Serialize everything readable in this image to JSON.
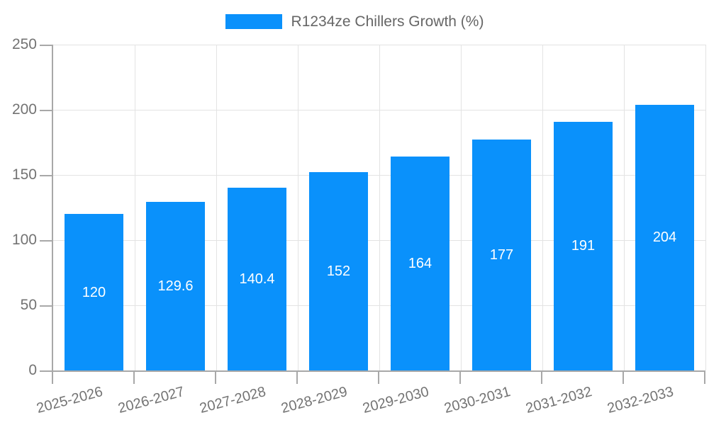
{
  "legend": {
    "label": "R1234ze Chillers Growth (%)"
  },
  "chart_data": {
    "type": "bar",
    "title": "R1234ze Chillers Growth (%)",
    "categories": [
      "2025-2026",
      "2026-2027",
      "2027-2028",
      "2028-2029",
      "2029-2030",
      "2030-2031",
      "2031-2032",
      "2032-2033"
    ],
    "values": [
      120,
      129.6,
      140.4,
      152,
      164,
      177,
      191,
      204
    ],
    "value_labels": [
      "120",
      "129.6",
      "140.4",
      "152",
      "164",
      "177",
      "191",
      "204"
    ],
    "series_name": "R1234ze Chillers Growth (%)",
    "xlabel": "",
    "ylabel": "",
    "ylim": [
      0,
      250
    ],
    "yticks": [
      0,
      50,
      100,
      150,
      200,
      250
    ],
    "grid": true,
    "legend_position": "top",
    "value_labels_inside_bars": true,
    "x_label_rotation_deg": -15
  },
  "colors": {
    "bar": "#0a91fb",
    "grid": "#e3e3e3",
    "axis": "#a8a8a8",
    "tick_text": "#737373",
    "legend_text": "#666666",
    "bar_label_text": "#ffffff",
    "background": "#ffffff"
  }
}
